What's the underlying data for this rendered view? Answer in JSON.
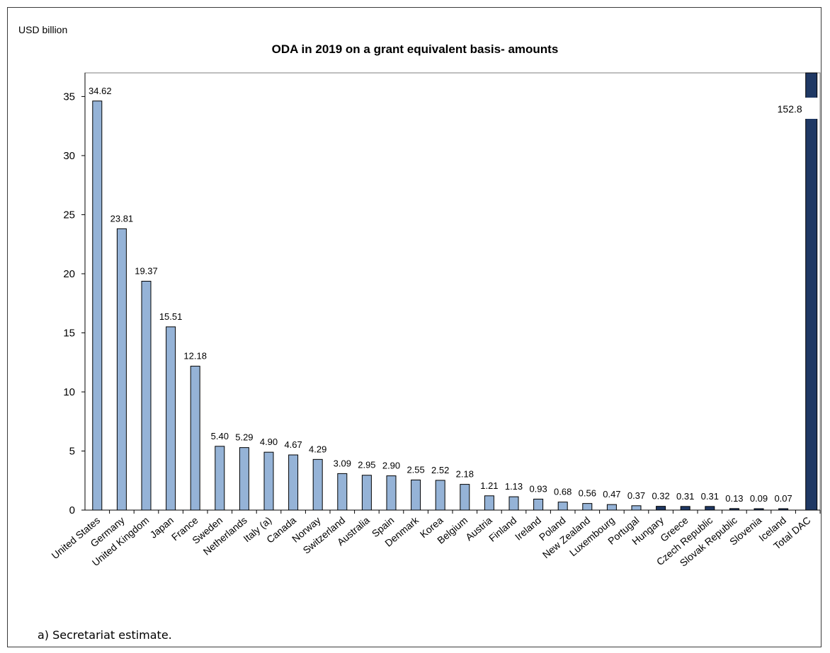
{
  "chart_data": {
    "type": "bar",
    "title": "ODA in 2019 on a grant equivalent basis- amounts",
    "ylabel": "USD billion",
    "xlabel": "",
    "ylim": [
      0,
      37
    ],
    "yticks": [
      0,
      5,
      10,
      15,
      20,
      25,
      30,
      35
    ],
    "categories": [
      "United States",
      "Germany",
      "United Kingdom",
      "Japan",
      "France",
      "Sweden",
      "Netherlands",
      "Italy (a)",
      "Canada",
      "Norway",
      "Switzerland",
      "Australia",
      "Spain",
      "Denmark",
      "Korea",
      "Belgium",
      "Austria",
      "Finland",
      "Ireland",
      "Poland",
      "New Zealand",
      "Luxembourg",
      "Portugal",
      "Hungary",
      "Greece",
      "Czech Republic",
      "Slovak Republic",
      "Slovenia",
      "Iceland",
      "Total DAC"
    ],
    "values": [
      34.62,
      23.81,
      19.37,
      15.51,
      12.18,
      5.4,
      5.29,
      4.9,
      4.67,
      4.29,
      3.09,
      2.95,
      2.9,
      2.55,
      2.52,
      2.18,
      1.21,
      1.13,
      0.93,
      0.68,
      0.56,
      0.47,
      0.37,
      0.32,
      0.31,
      0.31,
      0.13,
      0.09,
      0.07,
      152.8
    ],
    "value_labels": [
      "34.62",
      "23.81",
      "19.37",
      "15.51",
      "12.18",
      "5.40",
      "5.29",
      "4.90",
      "4.67",
      "4.29",
      "3.09",
      "2.95",
      "2.90",
      "2.55",
      "2.52",
      "2.18",
      "1.21",
      "1.13",
      "0.93",
      "0.68",
      "0.56",
      "0.47",
      "0.37",
      "0.32",
      "0.31",
      "0.31",
      "0.13",
      "0.09",
      "0.07",
      "152.8"
    ],
    "dark_bars": [
      "Hungary",
      "Greece",
      "Czech Republic",
      "Slovak Republic",
      "Slovenia",
      "Iceland",
      "Total DAC"
    ],
    "broken_axis_bar": "Total DAC",
    "colors": {
      "light": "#95b3d7",
      "dark": "#1f3864",
      "outline": "#000000"
    }
  },
  "footnote": "a) Secretariat estimate."
}
